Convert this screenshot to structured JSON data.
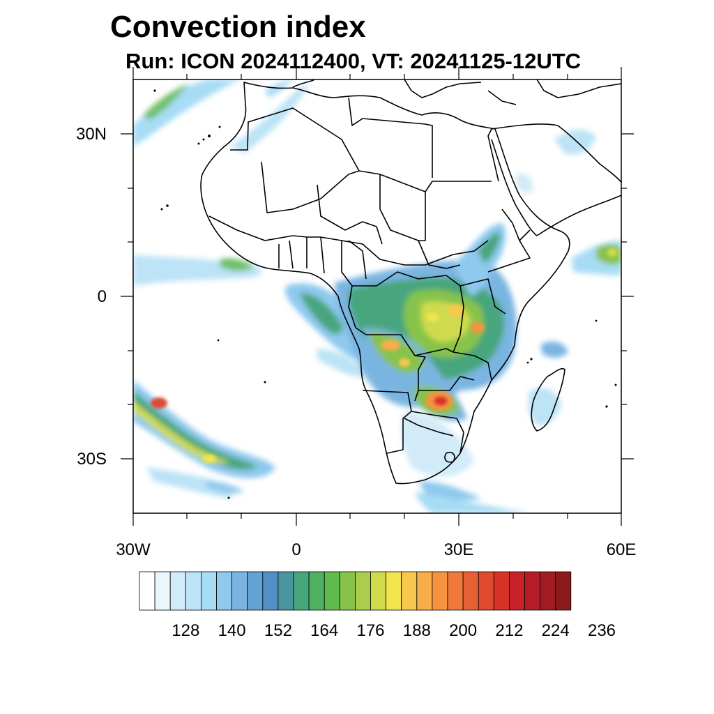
{
  "title": "Convection index",
  "subtitle": "Run: ICON 2024112400,  VT: 20241125-12UTC",
  "map": {
    "lon_range": [
      -30,
      60
    ],
    "lat_range": [
      -40,
      40
    ],
    "lat_labels": [
      "30N",
      "0",
      "30S"
    ],
    "lon_labels": [
      "30W",
      "0",
      "30E",
      "60E"
    ]
  },
  "colorbar": {
    "colors": [
      "#ffffff",
      "#eaf6fc",
      "#d2ebf8",
      "#bce3f6",
      "#a7dcf5",
      "#8fc9ee",
      "#7ab5e2",
      "#62a2d7",
      "#5190c6",
      "#4996a0",
      "#47a67d",
      "#4fb160",
      "#60bb4f",
      "#87c34b",
      "#aacd4c",
      "#cfdb4d",
      "#f1e44e",
      "#f8c84e",
      "#f8ad48",
      "#f59340",
      "#f0793a",
      "#e76033",
      "#df4a2d",
      "#d83329",
      "#c72229",
      "#b41d28",
      "#a11b23",
      "#8b1a1c"
    ],
    "tick_labels": [
      "128",
      "140",
      "152",
      "164",
      "176",
      "188",
      "200",
      "212",
      "224",
      "236"
    ]
  }
}
